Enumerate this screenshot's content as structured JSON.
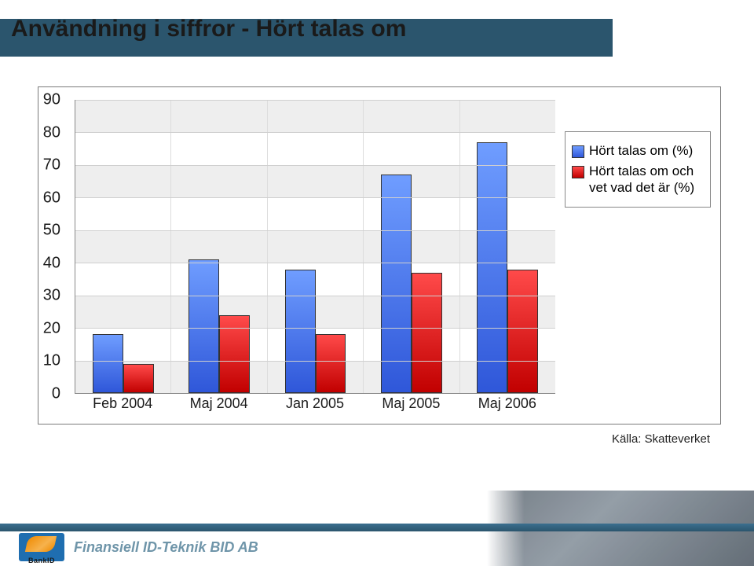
{
  "title": "Användning i siffror - Hört talas om",
  "chart": {
    "type": "bar",
    "y": {
      "min": 0,
      "max": 90,
      "step": 10
    },
    "categories": [
      "Feb 2004",
      "Maj 2004",
      "Jan 2005",
      "Maj 2005",
      "Maj 2006"
    ],
    "series": [
      {
        "label": "Hört talas om (%)",
        "color_top": "#6f9dff",
        "color_bottom": "#2f57d9",
        "values": [
          18,
          41,
          38,
          67,
          77
        ]
      },
      {
        "label": "Hört talas om och vet vad det är (%)",
        "color_top": "#ff4a4a",
        "color_bottom": "#c10000",
        "values": [
          9,
          24,
          18,
          37,
          38
        ]
      }
    ],
    "plot_band_color": "#eeeeee",
    "plot_bg": "#ffffff",
    "gridline_color": "#cfcfcf",
    "border_color": "#7b7b7b",
    "label_fontsize": 20,
    "xlabel_fontsize": 18,
    "bar_border": "#333333",
    "bar_width_pct": 32
  },
  "legend": {
    "items_from_series": true
  },
  "source_label": "Källa: Skatteverket",
  "footer": {
    "logo_text": "BankID",
    "company": "Finansiell ID-Teknik BID AB",
    "band_color_top": "#3b6f8f",
    "band_color_bottom": "#2b556d"
  }
}
